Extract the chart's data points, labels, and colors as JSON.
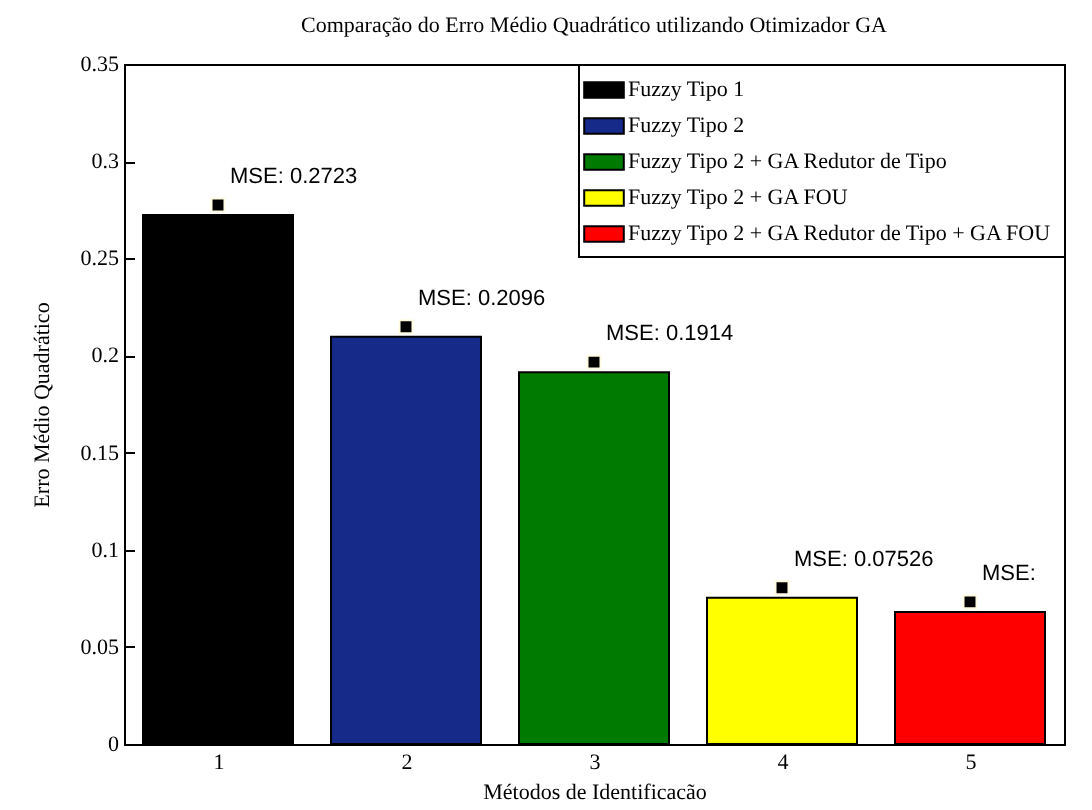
{
  "chart_data": {
    "type": "bar",
    "title": "Comparação do Erro Médio Quadrático utilizando Otimizador GA",
    "xlabel": "Métodos de Identificacão",
    "ylabel": "Erro Médio Quadrático",
    "series": [
      {
        "name": "Fuzzy Tipo 1",
        "color": "#000000",
        "x": [
          1
        ],
        "values": [
          0.2723
        ],
        "value_labels": [
          "MSE: 0.2723"
        ]
      },
      {
        "name": "Fuzzy Tipo 2",
        "color": "#162a8a",
        "x": [
          2
        ],
        "values": [
          0.2096
        ],
        "value_labels": [
          "MSE: 0.2096"
        ]
      },
      {
        "name": "Fuzzy Tipo 2 + GA Redutor de Tipo",
        "color": "#007a00",
        "x": [
          3
        ],
        "values": [
          0.1914
        ],
        "value_labels": [
          "MSE: 0.1914"
        ]
      },
      {
        "name": "Fuzzy Tipo 2 + GA FOU",
        "color": "#ffff00",
        "x": [
          4
        ],
        "values": [
          0.07526
        ],
        "value_labels": [
          "MSE: 0.07526"
        ]
      },
      {
        "name": "Fuzzy Tipo 2 + GA Redutor de Tipo + GA FOU",
        "color": "#ff0000",
        "x": [
          5
        ],
        "values": [
          0.068
        ],
        "value_labels": [
          "MSE:"
        ]
      }
    ],
    "xlim": [
      0.5,
      5.5
    ],
    "xticks": [
      1,
      2,
      3,
      4,
      5
    ],
    "ylim": [
      0,
      0.35
    ],
    "yticks": [
      0,
      0.05,
      0.1,
      0.15,
      0.2,
      0.25,
      0.3,
      0.35
    ],
    "marker": "square",
    "legend": "top right",
    "grid": false
  }
}
